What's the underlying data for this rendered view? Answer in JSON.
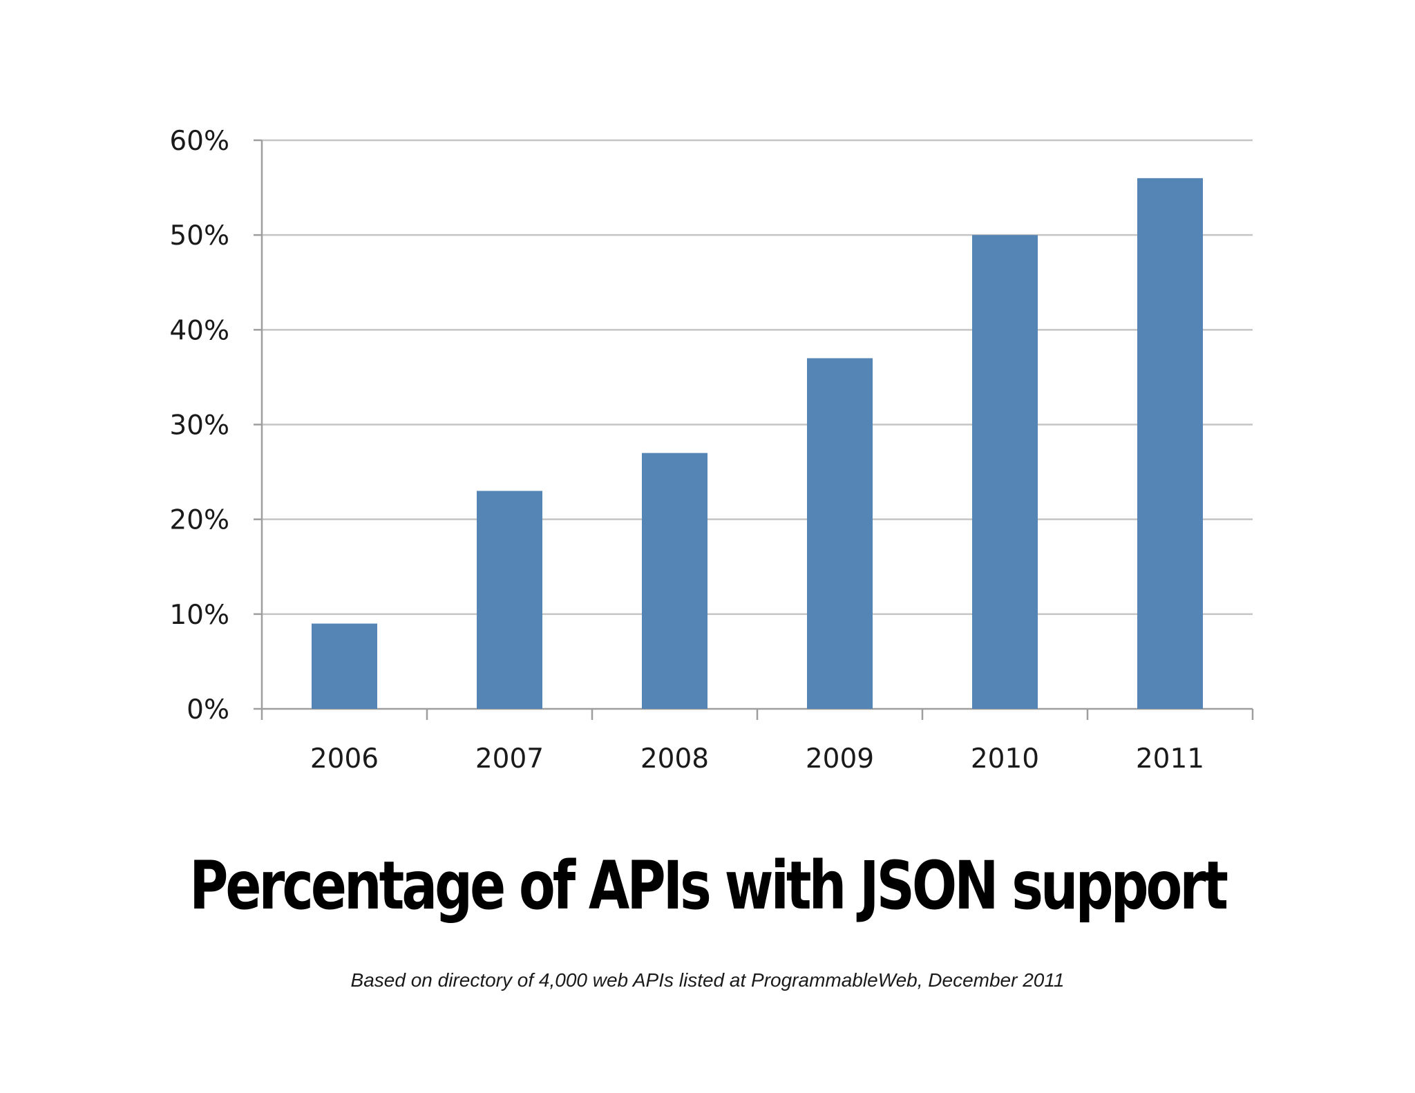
{
  "chart_data": {
    "type": "bar",
    "title": "Percentage of APIs with JSON support",
    "subtitle": "Based on directory of 4,000 web APIs listed at ProgrammableWeb, December 2011",
    "categories": [
      "2006",
      "2007",
      "2008",
      "2009",
      "2010",
      "2011"
    ],
    "values": [
      9,
      23,
      27,
      37,
      50,
      56
    ],
    "y_ticks": [
      "0%",
      "10%",
      "20%",
      "30%",
      "40%",
      "50%",
      "60%"
    ],
    "ylim": [
      0,
      60
    ],
    "y_unit": "%",
    "grid": true,
    "legend": "none",
    "colors": {
      "bar": "#5585b5",
      "grid": "#c4c4c4",
      "axis": "#9e9e9e"
    }
  }
}
